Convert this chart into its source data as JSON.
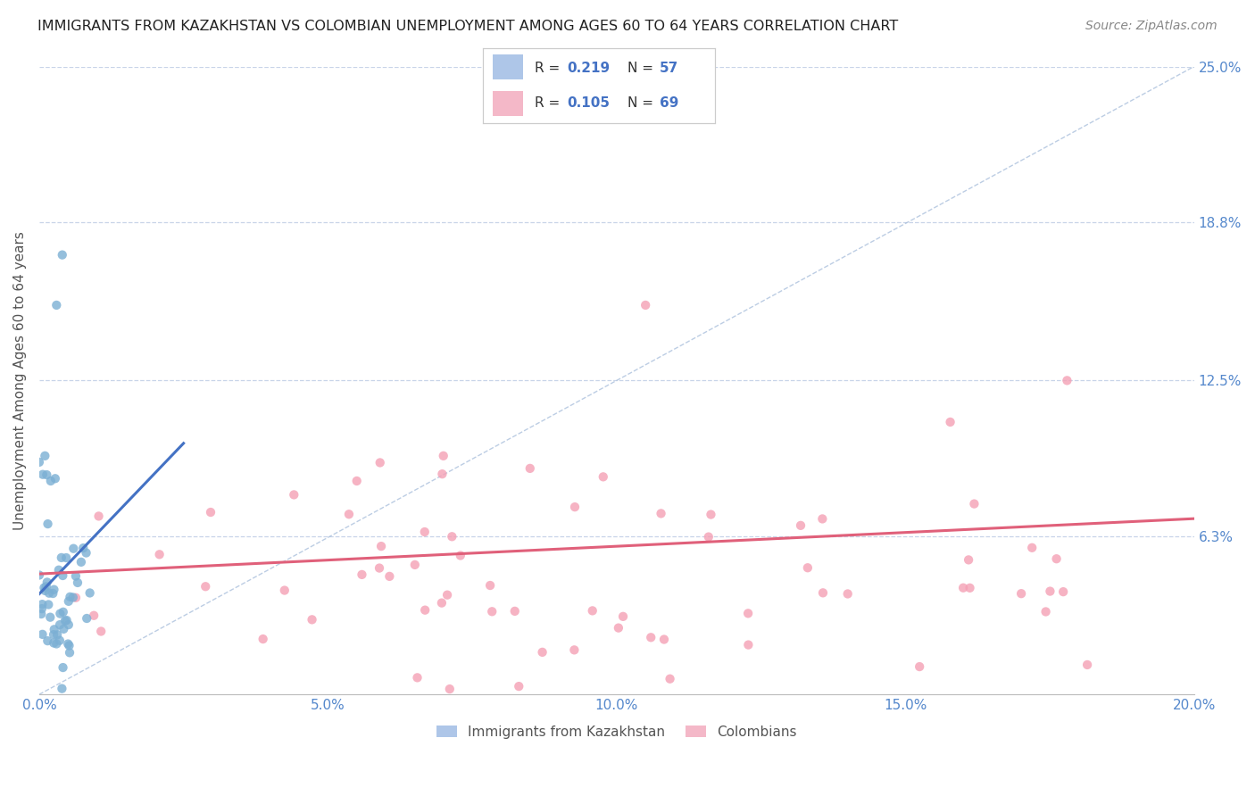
{
  "title": "IMMIGRANTS FROM KAZAKHSTAN VS COLOMBIAN UNEMPLOYMENT AMONG AGES 60 TO 64 YEARS CORRELATION CHART",
  "source": "Source: ZipAtlas.com",
  "ylabel": "Unemployment Among Ages 60 to 64 years",
  "xmin": 0.0,
  "xmax": 0.2,
  "ymin": 0.0,
  "ymax": 0.25,
  "yticks": [
    0.063,
    0.125,
    0.188,
    0.25
  ],
  "ytick_labels": [
    "6.3%",
    "12.5%",
    "18.8%",
    "25.0%"
  ],
  "xticks": [
    0.0,
    0.05,
    0.1,
    0.15,
    0.2
  ],
  "xtick_labels": [
    "0.0%",
    "5.0%",
    "10.0%",
    "15.0%",
    "20.0%"
  ],
  "kaz_scatter_color": "#7bafd4",
  "col_scatter_color": "#f4a0b5",
  "kaz_line_color": "#4472c4",
  "col_line_color": "#e0607a",
  "diagonal_color": "#a0b8d8",
  "kaz_N": 57,
  "col_N": 69,
  "background_color": "#ffffff",
  "grid_color": "#c8d4e8",
  "title_color": "#222222",
  "axis_label_color": "#555555",
  "tick_color": "#5588cc",
  "legend_R_color": "#4472c4",
  "kaz_legend_color": "#aec6e8",
  "col_legend_color": "#f4b8c8"
}
